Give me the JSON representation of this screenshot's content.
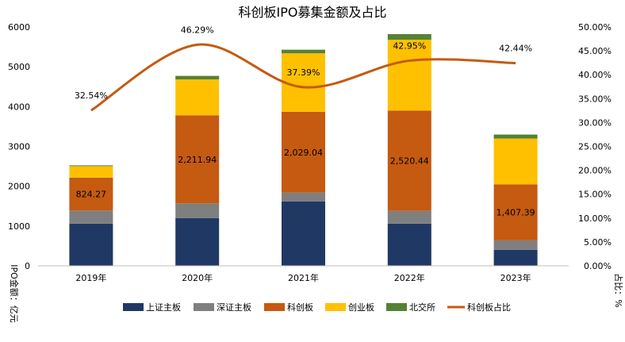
{
  "chart_data": {
    "type": "bar",
    "title": "科创板IPO募集金额及占比",
    "ylabel": "IPO金额：亿元",
    "y2label": "占比：%",
    "categories": [
      "2019年",
      "2020年",
      "2021年",
      "2022年",
      "2023年"
    ],
    "ylim": [
      0,
      6000
    ],
    "y2lim": [
      0,
      50
    ],
    "y_ticks": [
      "0",
      "1000",
      "2000",
      "3000",
      "4000",
      "5000",
      "6000"
    ],
    "y2_ticks": [
      "0.00%",
      "5.00%",
      "10.00%",
      "15.00%",
      "20.00%",
      "25.00%",
      "30.00%",
      "35.00%",
      "40.00%",
      "45.00%",
      "50.00%"
    ],
    "grid": false,
    "legend_position": "bottom",
    "stacked": true,
    "series": [
      {
        "name": "上证主板",
        "type": "bar",
        "color": "#203864",
        "values": [
          1060,
          1200,
          1620,
          1060,
          400
        ]
      },
      {
        "name": "深证主板",
        "type": "bar",
        "color": "#7f7f7f",
        "values": [
          330,
          370,
          220,
          320,
          240
        ]
      },
      {
        "name": "科创板",
        "type": "bar",
        "color": "#c55a11",
        "values": [
          824.27,
          2211.94,
          2029.04,
          2520.44,
          1407.39
        ]
      },
      {
        "name": "创业板",
        "type": "bar",
        "color": "#ffc000",
        "values": [
          290,
          900,
          1470,
          1780,
          1150
        ]
      },
      {
        "name": "北交所",
        "type": "bar",
        "color": "#548235",
        "values": [
          20,
          90,
          90,
          140,
          100
        ]
      },
      {
        "name": "科创板占比",
        "type": "line",
        "axis": "right",
        "color": "#c55a11",
        "values": [
          32.54,
          46.29,
          37.39,
          42.95,
          42.44
        ]
      }
    ],
    "bar_labels": [
      "824.27",
      "2,211.94",
      "2,029.04",
      "2,520.44",
      "1,407.39"
    ],
    "line_labels": [
      "32.54%",
      "46.29%",
      "37.39%",
      "42.95%",
      "42.44%"
    ]
  }
}
